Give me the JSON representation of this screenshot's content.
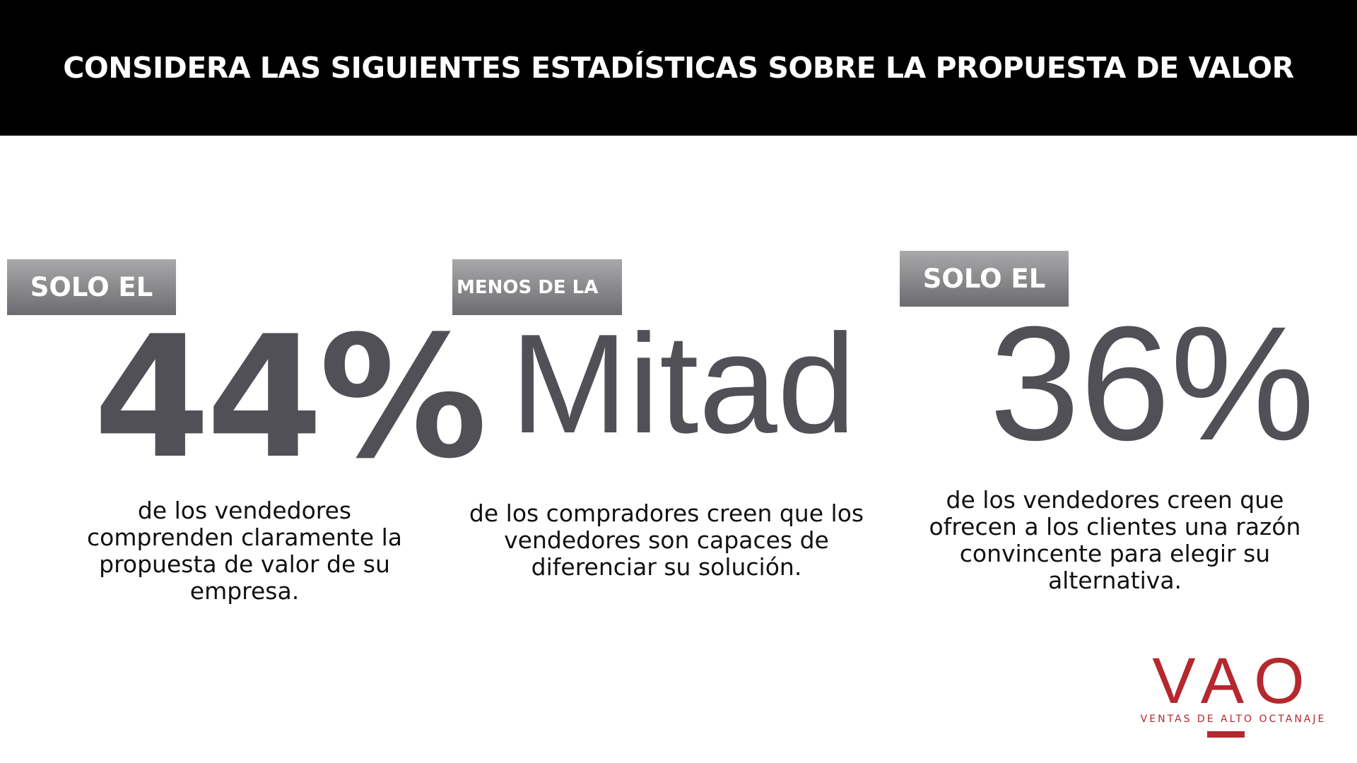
{
  "header": {
    "title": "CONSIDERA LAS SIGUIENTES ESTADÍSTICAS SOBRE LA PROPUESTA DE VALOR"
  },
  "stats": [
    {
      "badge": "SOLO EL",
      "figure": "44%",
      "description": "de los vendedores comprenden claramente la propuesta de valor de su empresa."
    },
    {
      "badge": "MENOS DE LA",
      "figure": "Mitad",
      "description": "de los compradores creen que los vendedores son capaces de diferenciar su solución."
    },
    {
      "badge": "SOLO EL",
      "figure": "36%",
      "description": "de los vendedores creen que ofrecen a los clientes una razón convincente para elegir su alternativa."
    }
  ],
  "logo": {
    "mark": "VAO",
    "tagline": "VENTAS DE ALTO OCTANAJE"
  }
}
